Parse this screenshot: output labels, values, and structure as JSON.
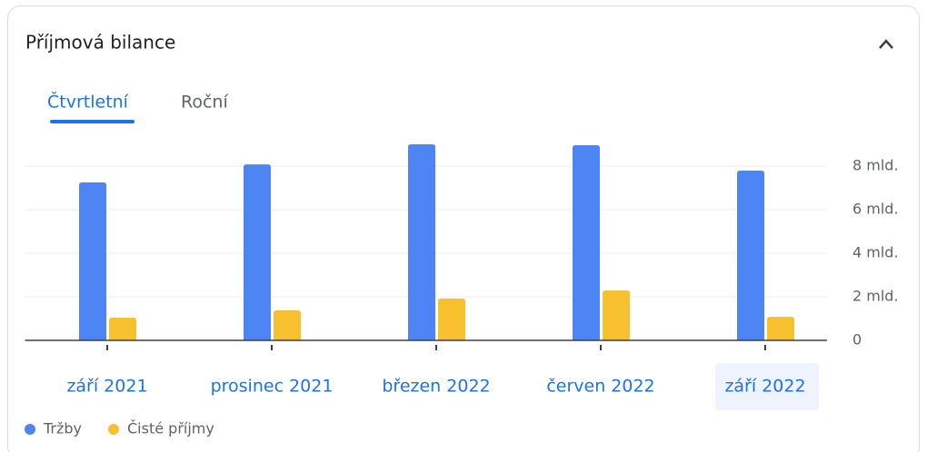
{
  "tabs": [
    "Čtvrtletní",
    "Roční"
  ],
  "chart_data": {
    "type": "bar",
    "title": "Příjmová bilance",
    "categories": [
      "září 2021",
      "prosinec 2021",
      "březen 2022",
      "červen 2022",
      "září 2022"
    ],
    "series": [
      {
        "name": "Tržby",
        "color": "#4e85f4",
        "values": [
          7.25,
          8.08,
          9.0,
          8.96,
          7.79
        ]
      },
      {
        "name": "Čisté příjmy",
        "color": "#f6c02e",
        "values": [
          1.04,
          1.38,
          1.92,
          2.29,
          1.08
        ]
      }
    ],
    "ylim": [
      0,
      9.4
    ],
    "yticks": [
      0,
      {
        "value": 2,
        "label": "2 mld."
      },
      {
        "value": 4,
        "label": "4 mld."
      },
      {
        "value": 6,
        "label": "6 mld."
      },
      {
        "value": 8,
        "label": "8 mld."
      }
    ],
    "grid": true,
    "legend": "bottom"
  }
}
